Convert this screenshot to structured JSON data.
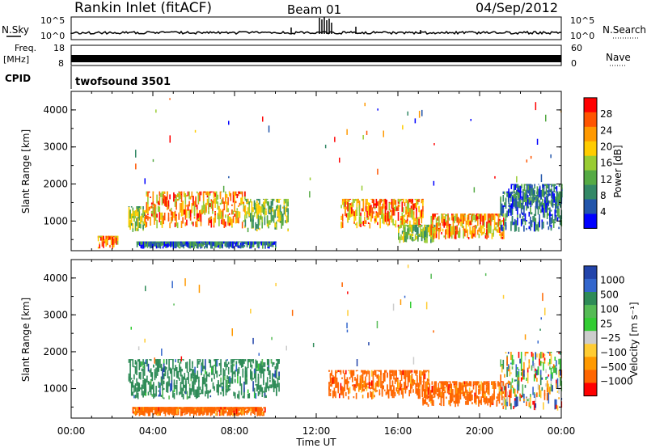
{
  "header": {
    "station": "Rankin Inlet (fitACF)",
    "beam": "Beam 01",
    "date": "04/Sep/2012"
  },
  "params": {
    "nsky_label": "N.Sky",
    "nsearch_label": "N.Search",
    "nsky_ticks": [
      "10^5",
      "10^0"
    ],
    "freq_label_1": "Freq.",
    "freq_label_2": "[MHz]",
    "freq_ticks": [
      "18",
      "8"
    ],
    "nave_label": "Nave",
    "nave_ticks": [
      "60",
      "0"
    ],
    "cpid_label": "CPID",
    "cpid_value": "twofsound 3501",
    "accent_colors": {
      "nsearch_dots": "#000000",
      "nave_dots": "#000000"
    }
  },
  "chart_data": [
    {
      "type": "heatmap",
      "name": "power",
      "ylabel": "Slant Range [km]",
      "xlabel": "",
      "x_range": [
        0,
        24
      ],
      "ylim": [
        200,
        4500
      ],
      "y_ticks": [
        1000,
        2000,
        3000,
        4000
      ],
      "x_ticks": [
        0,
        4,
        8,
        12,
        16,
        20,
        24
      ],
      "colorbar": {
        "label": "Power [dB]",
        "ticks": [
          "28",
          "24",
          "20",
          "16",
          "12",
          "8",
          "4"
        ],
        "colors": [
          "#ff0000",
          "#ff5500",
          "#ff9900",
          "#ffcc00",
          "#99cc33",
          "#55aa44",
          "#338866",
          "#2255aa",
          "#0000ff"
        ]
      },
      "echo_regions": [
        {
          "t0": 1.3,
          "t1": 2.3,
          "r0": 250,
          "r1": 600,
          "level": "high"
        },
        {
          "t0": 2.8,
          "t1": 3.6,
          "r0": 700,
          "r1": 1400,
          "level": "mid"
        },
        {
          "t0": 3.6,
          "t1": 8.5,
          "r0": 800,
          "r1": 1800,
          "level": "high"
        },
        {
          "t0": 8.5,
          "t1": 10.6,
          "r0": 700,
          "r1": 1600,
          "level": "mid"
        },
        {
          "t0": 3.2,
          "t1": 10.0,
          "r0": 250,
          "r1": 450,
          "level": "low"
        },
        {
          "t0": 13.2,
          "t1": 17.2,
          "r0": 800,
          "r1": 1600,
          "level": "high"
        },
        {
          "t0": 16.0,
          "t1": 17.8,
          "r0": 400,
          "r1": 900,
          "level": "mid"
        },
        {
          "t0": 17.6,
          "t1": 21.2,
          "r0": 500,
          "r1": 1200,
          "level": "high"
        },
        {
          "t0": 21.0,
          "t1": 24.0,
          "r0": 700,
          "r1": 1800,
          "level": "low"
        },
        {
          "t0": 21.4,
          "t1": 24.0,
          "r0": 1300,
          "r1": 2000,
          "level": "low"
        }
      ]
    },
    {
      "type": "heatmap",
      "name": "velocity",
      "ylabel": "Slant Range [km]",
      "xlabel": "Time UT",
      "x_range": [
        0,
        24
      ],
      "ylim": [
        200,
        4500
      ],
      "y_ticks": [
        1000,
        2000,
        3000,
        4000
      ],
      "x_ticks": [
        0,
        4,
        8,
        12,
        16,
        20,
        24
      ],
      "x_tick_labels": [
        "00:00",
        "04:00",
        "08:00",
        "12:00",
        "16:00",
        "20:00",
        "00:00"
      ],
      "colorbar": {
        "label": "Velocity [m s⁻¹]",
        "ticks": [
          "1000",
          "500",
          "100",
          "25",
          "−25",
          "−100",
          "−500",
          "−1000"
        ],
        "colors": [
          "#2244aa",
          "#3366cc",
          "#2e8b57",
          "#55bb55",
          "#33cc33",
          "#cccccc",
          "#ffcc33",
          "#ff9900",
          "#ff6600",
          "#ff0000"
        ]
      },
      "echo_regions": [
        {
          "t0": 2.8,
          "t1": 10.2,
          "r0": 700,
          "r1": 1800,
          "level": "pos"
        },
        {
          "t0": 3.0,
          "t1": 9.5,
          "r0": 250,
          "r1": 500,
          "level": "neg"
        },
        {
          "t0": 12.6,
          "t1": 17.5,
          "r0": 700,
          "r1": 1500,
          "level": "neg"
        },
        {
          "t0": 17.2,
          "t1": 21.5,
          "r0": 500,
          "r1": 1200,
          "level": "neg"
        },
        {
          "t0": 21.0,
          "t1": 24.0,
          "r0": 400,
          "r1": 2000,
          "level": "mixed"
        }
      ]
    }
  ]
}
